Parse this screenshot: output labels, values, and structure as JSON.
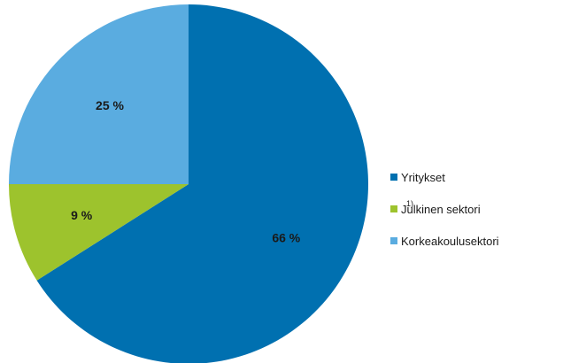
{
  "chart_data": {
    "type": "pie",
    "title": "",
    "start_angle_deg": 0,
    "direction": "clockwise",
    "legend_position": "right",
    "slices": [
      {
        "name": "Yritykset",
        "value": 66,
        "label": "66 %",
        "color": "#0070b0",
        "footnote": ""
      },
      {
        "name": "Julkinen sektori",
        "value": 9,
        "label": "9 %",
        "color": "#9dc32d",
        "footnote": "1)"
      },
      {
        "name": "Korkeakoulusektori",
        "value": 25,
        "label": "25 %",
        "color": "#5aace0",
        "footnote": ""
      }
    ]
  }
}
